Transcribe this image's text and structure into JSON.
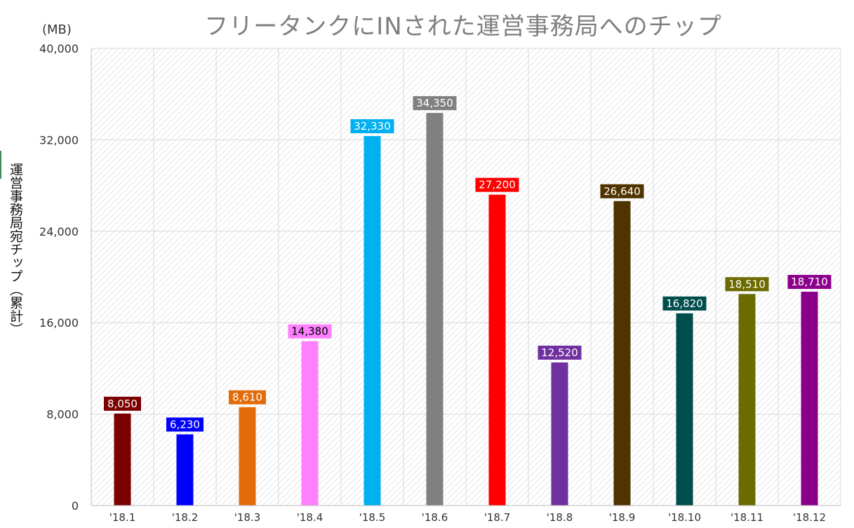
{
  "chart_data": {
    "type": "bar",
    "title": "フリータンクにINされた運営事務局へのチップ",
    "unit_label": "(MB)",
    "ylabel": "運営事務局宛チップ（累計）",
    "xlabel": "",
    "ylim": [
      0,
      40000
    ],
    "yticks": [
      0,
      8000,
      16000,
      24000,
      32000,
      40000
    ],
    "ytick_labels": [
      "0",
      "8,000",
      "16,000",
      "24,000",
      "32,000",
      "40,000"
    ],
    "grid": true,
    "legend": "none",
    "categories": [
      "'18.1",
      "'18.2",
      "'18.3",
      "'18.4",
      "'18.5",
      "'18.6",
      "'18.7",
      "'18.8",
      "'18.9",
      "'18.10",
      "'18.11",
      "'18.12"
    ],
    "values": [
      8050,
      6230,
      8610,
      14380,
      32330,
      34350,
      27200,
      12520,
      26640,
      16820,
      18510,
      18710
    ],
    "value_labels": [
      "8,050",
      "6,230",
      "8,610",
      "14,380",
      "32,330",
      "34,350",
      "27,200",
      "12,520",
      "26,640",
      "16,820",
      "18,510",
      "18,710"
    ],
    "colors": [
      "#7b0000",
      "#0000ff",
      "#e36c0a",
      "#ff80ff",
      "#00b0f0",
      "#808080",
      "#ff0000",
      "#7030a0",
      "#4f3300",
      "#004d4d",
      "#6b6b00",
      "#8b008b"
    ],
    "label_text_colors": [
      "#ffffff",
      "#ffffff",
      "#ffffff",
      "#000000",
      "#ffffff",
      "#ffffff",
      "#ffffff",
      "#ffffff",
      "#ffffff",
      "#ffffff",
      "#ffffff",
      "#ffffff"
    ]
  }
}
